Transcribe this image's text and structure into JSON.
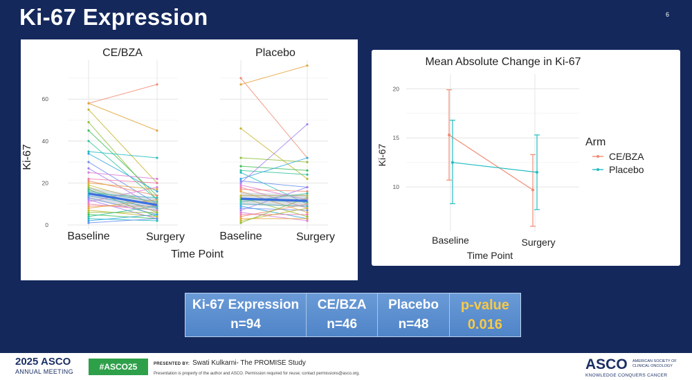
{
  "slide": {
    "title": "Ki-67 Expression",
    "page_number": "6"
  },
  "colors": {
    "ce_bza": "#f08b72",
    "placebo": "#22bcc2",
    "mean_line": "#3a6fe0",
    "slide_bg": "#14285c",
    "pvalue": "#f7c948"
  },
  "chart_data": [
    {
      "type": "line",
      "panels": [
        "CE/BZA",
        "Placebo"
      ],
      "ylabel": "Ki-67",
      "xlabel": "Time Point",
      "categories": [
        "Baseline",
        "Surgery"
      ],
      "yticks": [
        0,
        20,
        40,
        60
      ],
      "ylim": [
        0,
        77
      ],
      "grid": true,
      "series_ce_bza": [
        [
          58,
          67
        ],
        [
          58,
          45
        ],
        [
          55,
          20
        ],
        [
          49,
          12
        ],
        [
          45,
          14
        ],
        [
          40,
          12
        ],
        [
          35,
          32
        ],
        [
          34,
          16
        ],
        [
          30,
          10
        ],
        [
          27,
          8
        ],
        [
          25,
          22
        ],
        [
          22,
          20
        ],
        [
          21,
          14
        ],
        [
          20,
          17
        ],
        [
          19,
          10
        ],
        [
          18,
          6
        ],
        [
          17,
          4
        ],
        [
          16,
          11
        ],
        [
          15,
          13
        ],
        [
          14,
          8
        ],
        [
          13,
          5
        ],
        [
          12,
          3
        ],
        [
          11,
          18
        ],
        [
          10,
          7
        ],
        [
          9,
          9
        ],
        [
          8,
          12
        ],
        [
          7,
          4
        ],
        [
          6,
          6
        ],
        [
          5,
          3
        ],
        [
          4,
          9
        ],
        [
          3,
          2
        ],
        [
          2,
          5
        ],
        [
          1,
          3
        ]
      ],
      "series_placebo": [
        [
          70,
          32
        ],
        [
          67,
          76
        ],
        [
          46,
          22
        ],
        [
          32,
          30
        ],
        [
          28,
          26
        ],
        [
          26,
          24
        ],
        [
          25,
          10
        ],
        [
          22,
          32
        ],
        [
          21,
          18
        ],
        [
          20,
          48
        ],
        [
          19,
          12
        ],
        [
          18,
          8
        ],
        [
          17,
          16
        ],
        [
          16,
          6
        ],
        [
          14,
          14
        ],
        [
          13,
          4
        ],
        [
          12,
          11
        ],
        [
          11,
          15
        ],
        [
          10,
          9
        ],
        [
          9,
          3
        ],
        [
          8,
          7
        ],
        [
          7,
          18
        ],
        [
          6,
          2
        ],
        [
          5,
          5
        ],
        [
          4,
          10
        ],
        [
          3,
          3
        ],
        [
          2,
          8
        ],
        [
          1,
          13
        ]
      ],
      "mean_ce_bza": [
        15,
        9.5
      ],
      "mean_placebo": [
        12.5,
        11.5
      ]
    },
    {
      "type": "line",
      "title": "Mean Absolute Change in Ki-67",
      "ylabel": "Ki-67",
      "xlabel": "Time Point",
      "categories": [
        "Baseline",
        "Surgery"
      ],
      "yticks": [
        10,
        15,
        20
      ],
      "ylim": [
        5.5,
        21.5
      ],
      "legend_title": "Arm",
      "legend_position": "right",
      "series": [
        {
          "name": "CE/BZA",
          "values": [
            15.3,
            9.7
          ],
          "err_low": [
            10.7,
            6.0
          ],
          "err_high": [
            19.9,
            13.3
          ]
        },
        {
          "name": "Placebo",
          "values": [
            12.5,
            11.5
          ],
          "err_low": [
            8.3,
            7.7
          ],
          "err_high": [
            16.8,
            15.3
          ]
        }
      ]
    }
  ],
  "table": {
    "headers": [
      "Ki-67 Expression",
      "CE/BZA",
      "Placebo",
      "p-value"
    ],
    "values": [
      "n=94",
      "n=46",
      "n=48",
      "0.016"
    ]
  },
  "footer": {
    "meeting_year_brand": "2025 ASCO",
    "meeting_sub": "ANNUAL MEETING",
    "hashtag": "#ASCO25",
    "presented_label": "PRESENTED BY:",
    "presenter": "Swati Kulkarni- The PROMISE Study",
    "disclaimer": "Presentation is property of the author and ASCO. Permission required for reuse; contact permissions@asco.org.",
    "asco_logo": "ASCO",
    "asco_full": "AMERICAN SOCIETY OF CLINICAL ONCOLOGY",
    "asco_tagline": "KNOWLEDGE CONQUERS CANCER"
  }
}
